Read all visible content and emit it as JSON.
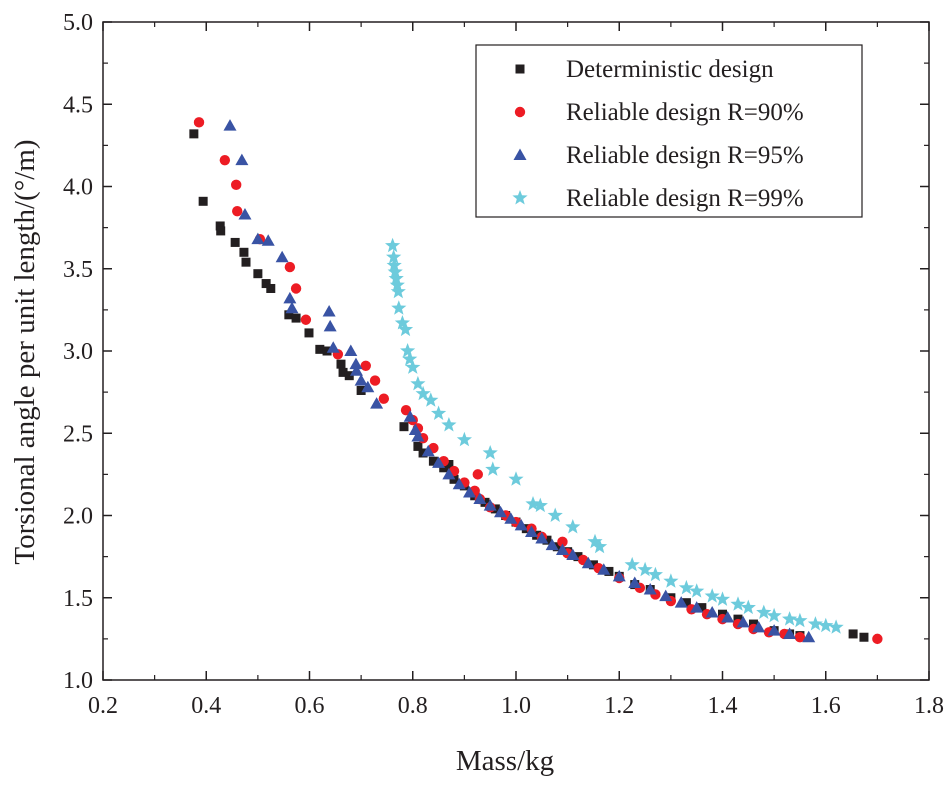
{
  "chart_data": {
    "type": "scatter",
    "title": "",
    "xlabel": "Mass/kg",
    "ylabel": "Torsional angle per unit length/(°/m)",
    "xlim": [
      0.2,
      1.8
    ],
    "ylim": [
      1.0,
      5.0
    ],
    "xticks": [
      "0.2",
      "0.4",
      "0.6",
      "0.8",
      "1.0",
      "1.2",
      "1.4",
      "1.6",
      "1.8"
    ],
    "yticks": [
      "1.0",
      "1.5",
      "2.0",
      "2.5",
      "3.0",
      "3.5",
      "4.0",
      "4.5",
      "5.0"
    ],
    "grid": false,
    "legend_position": "top-right",
    "series": [
      {
        "name": "Deterministic design",
        "marker": "square",
        "color": "#231f20",
        "points": [
          [
            0.376,
            4.32
          ],
          [
            0.394,
            3.91
          ],
          [
            0.427,
            3.76
          ],
          [
            0.428,
            3.73
          ],
          [
            0.456,
            3.66
          ],
          [
            0.473,
            3.6
          ],
          [
            0.477,
            3.54
          ],
          [
            0.5,
            3.47
          ],
          [
            0.516,
            3.41
          ],
          [
            0.525,
            3.38
          ],
          [
            0.56,
            3.22
          ],
          [
            0.574,
            3.2
          ],
          [
            0.599,
            3.11
          ],
          [
            0.62,
            3.01
          ],
          [
            0.634,
            3.0
          ],
          [
            0.661,
            2.92
          ],
          [
            0.665,
            2.87
          ],
          [
            0.677,
            2.85
          ],
          [
            0.7,
            2.76
          ],
          [
            0.783,
            2.54
          ],
          [
            0.81,
            2.42
          ],
          [
            0.82,
            2.38
          ],
          [
            0.84,
            2.33
          ],
          [
            0.86,
            2.29
          ],
          [
            0.87,
            2.31
          ],
          [
            0.88,
            2.22
          ],
          [
            0.9,
            2.18
          ],
          [
            0.92,
            2.12
          ],
          [
            0.94,
            2.08
          ],
          [
            0.96,
            2.04
          ],
          [
            0.98,
            2.0
          ],
          [
            1.0,
            1.96
          ],
          [
            1.02,
            1.92
          ],
          [
            1.04,
            1.88
          ],
          [
            1.06,
            1.85
          ],
          [
            1.08,
            1.81
          ],
          [
            1.1,
            1.78
          ],
          [
            1.12,
            1.75
          ],
          [
            1.15,
            1.7
          ],
          [
            1.18,
            1.66
          ],
          [
            1.2,
            1.63
          ],
          [
            1.23,
            1.58
          ],
          [
            1.26,
            1.55
          ],
          [
            1.3,
            1.5
          ],
          [
            1.33,
            1.47
          ],
          [
            1.36,
            1.44
          ],
          [
            1.4,
            1.4
          ],
          [
            1.43,
            1.37
          ],
          [
            1.46,
            1.34
          ],
          [
            1.5,
            1.3
          ],
          [
            1.53,
            1.28
          ],
          [
            1.55,
            1.27
          ],
          [
            1.653,
            1.28
          ],
          [
            1.674,
            1.26
          ]
        ]
      },
      {
        "name": "Reliable design R=90%",
        "marker": "circle",
        "color": "#ed1c24",
        "points": [
          [
            0.386,
            4.39
          ],
          [
            0.436,
            4.16
          ],
          [
            0.458,
            4.01
          ],
          [
            0.46,
            3.85
          ],
          [
            0.504,
            3.68
          ],
          [
            0.562,
            3.51
          ],
          [
            0.574,
            3.38
          ],
          [
            0.593,
            3.19
          ],
          [
            0.655,
            2.98
          ],
          [
            0.709,
            2.91
          ],
          [
            0.727,
            2.82
          ],
          [
            0.744,
            2.71
          ],
          [
            0.787,
            2.64
          ],
          [
            0.8,
            2.58
          ],
          [
            0.81,
            2.53
          ],
          [
            0.82,
            2.47
          ],
          [
            0.84,
            2.41
          ],
          [
            0.86,
            2.33
          ],
          [
            0.88,
            2.27
          ],
          [
            0.9,
            2.2
          ],
          [
            0.926,
            2.25
          ],
          [
            0.92,
            2.15
          ],
          [
            0.93,
            2.1
          ],
          [
            0.95,
            2.05
          ],
          [
            0.98,
            2.0
          ],
          [
            1.0,
            1.96
          ],
          [
            1.03,
            1.92
          ],
          [
            1.05,
            1.87
          ],
          [
            1.09,
            1.84
          ],
          [
            1.1,
            1.77
          ],
          [
            1.13,
            1.73
          ],
          [
            1.16,
            1.68
          ],
          [
            1.2,
            1.62
          ],
          [
            1.24,
            1.56
          ],
          [
            1.27,
            1.52
          ],
          [
            1.3,
            1.48
          ],
          [
            1.34,
            1.43
          ],
          [
            1.37,
            1.4
          ],
          [
            1.4,
            1.37
          ],
          [
            1.43,
            1.34
          ],
          [
            1.46,
            1.31
          ],
          [
            1.49,
            1.29
          ],
          [
            1.52,
            1.28
          ],
          [
            1.55,
            1.26
          ],
          [
            1.7,
            1.25
          ]
        ]
      },
      {
        "name": "Reliable design R=95%",
        "marker": "triangle",
        "color": "#3953a4",
        "points": [
          [
            0.446,
            4.37
          ],
          [
            0.469,
            4.16
          ],
          [
            0.475,
            3.83
          ],
          [
            0.5,
            3.68
          ],
          [
            0.52,
            3.67
          ],
          [
            0.547,
            3.57
          ],
          [
            0.562,
            3.32
          ],
          [
            0.566,
            3.26
          ],
          [
            0.638,
            3.24
          ],
          [
            0.64,
            3.15
          ],
          [
            0.646,
            3.02
          ],
          [
            0.68,
            3.0
          ],
          [
            0.69,
            2.92
          ],
          [
            0.691,
            2.88
          ],
          [
            0.7,
            2.82
          ],
          [
            0.713,
            2.78
          ],
          [
            0.73,
            2.68
          ],
          [
            0.795,
            2.6
          ],
          [
            0.805,
            2.52
          ],
          [
            0.81,
            2.48
          ],
          [
            0.83,
            2.39
          ],
          [
            0.85,
            2.32
          ],
          [
            0.87,
            2.25
          ],
          [
            0.89,
            2.19
          ],
          [
            0.91,
            2.14
          ],
          [
            0.93,
            2.1
          ],
          [
            0.95,
            2.06
          ],
          [
            0.97,
            2.02
          ],
          [
            0.99,
            1.98
          ],
          [
            1.01,
            1.94
          ],
          [
            1.03,
            1.9
          ],
          [
            1.05,
            1.86
          ],
          [
            1.07,
            1.82
          ],
          [
            1.09,
            1.79
          ],
          [
            1.11,
            1.76
          ],
          [
            1.14,
            1.71
          ],
          [
            1.17,
            1.67
          ],
          [
            1.2,
            1.63
          ],
          [
            1.23,
            1.59
          ],
          [
            1.26,
            1.55
          ],
          [
            1.29,
            1.51
          ],
          [
            1.32,
            1.47
          ],
          [
            1.35,
            1.44
          ],
          [
            1.38,
            1.41
          ],
          [
            1.41,
            1.38
          ],
          [
            1.44,
            1.35
          ],
          [
            1.47,
            1.32
          ],
          [
            1.5,
            1.3
          ],
          [
            1.53,
            1.28
          ],
          [
            1.567,
            1.26
          ]
        ]
      },
      {
        "name": "Reliable design R=99%",
        "marker": "star",
        "color": "#6dcbdc",
        "points": [
          [
            0.761,
            3.64
          ],
          [
            0.763,
            3.57
          ],
          [
            0.764,
            3.52
          ],
          [
            0.766,
            3.48
          ],
          [
            0.768,
            3.44
          ],
          [
            0.77,
            3.4
          ],
          [
            0.772,
            3.36
          ],
          [
            0.773,
            3.26
          ],
          [
            0.78,
            3.17
          ],
          [
            0.786,
            3.13
          ],
          [
            0.79,
            3.0
          ],
          [
            0.794,
            2.95
          ],
          [
            0.8,
            2.9
          ],
          [
            0.81,
            2.8
          ],
          [
            0.82,
            2.74
          ],
          [
            0.835,
            2.7
          ],
          [
            0.85,
            2.62
          ],
          [
            0.87,
            2.55
          ],
          [
            0.9,
            2.46
          ],
          [
            0.95,
            2.38
          ],
          [
            0.955,
            2.28
          ],
          [
            1.0,
            2.22
          ],
          [
            1.033,
            2.07
          ],
          [
            1.047,
            2.06
          ],
          [
            1.076,
            2.0
          ],
          [
            1.11,
            1.93
          ],
          [
            1.153,
            1.84
          ],
          [
            1.162,
            1.81
          ],
          [
            1.225,
            1.7
          ],
          [
            1.25,
            1.67
          ],
          [
            1.27,
            1.64
          ],
          [
            1.3,
            1.6
          ],
          [
            1.33,
            1.56
          ],
          [
            1.35,
            1.54
          ],
          [
            1.38,
            1.51
          ],
          [
            1.4,
            1.49
          ],
          [
            1.43,
            1.46
          ],
          [
            1.45,
            1.44
          ],
          [
            1.48,
            1.41
          ],
          [
            1.5,
            1.39
          ],
          [
            1.53,
            1.37
          ],
          [
            1.55,
            1.36
          ],
          [
            1.58,
            1.34
          ],
          [
            1.6,
            1.33
          ],
          [
            1.62,
            1.32
          ]
        ]
      }
    ]
  }
}
